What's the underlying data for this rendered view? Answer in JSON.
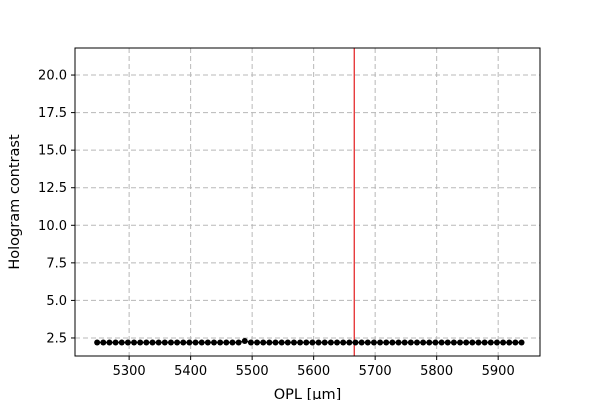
{
  "chart_data": {
    "type": "line",
    "title": "",
    "xlabel": "OPL [μm]",
    "ylabel": "Hologram contrast",
    "xlim": [
      5212,
      5968
    ],
    "ylim": [
      1.3,
      21.8
    ],
    "xticks": [
      5300,
      5400,
      5500,
      5600,
      5700,
      5800,
      5900
    ],
    "yticks": [
      2.5,
      5.0,
      7.5,
      10.0,
      12.5,
      15.0,
      17.5,
      20.0
    ],
    "xtick_labels": [
      "5300",
      "5400",
      "5500",
      "5600",
      "5700",
      "5800",
      "5900"
    ],
    "ytick_labels": [
      "2.5",
      "5.0",
      "7.5",
      "10.0",
      "12.5",
      "15.0",
      "17.5",
      "20.0"
    ],
    "grid": true,
    "grid_style": "dashed",
    "line_color": "#000000",
    "marker": "circle",
    "vertical_line": {
      "x": 5666,
      "color": "#e31a1c"
    },
    "series": [
      {
        "x": [
          5248,
          5258,
          5268,
          5278,
          5288,
          5298,
          5308,
          5318,
          5328,
          5338,
          5348,
          5358,
          5368,
          5378,
          5388,
          5398,
          5408,
          5418,
          5428,
          5438,
          5448,
          5458,
          5468,
          5478,
          5488,
          5498,
          5508,
          5518,
          5528,
          5538,
          5548,
          5558,
          5568,
          5578,
          5588,
          5598,
          5608,
          5618,
          5628,
          5638,
          5648,
          5658,
          5668,
          5678,
          5688,
          5698,
          5708,
          5718,
          5728,
          5738,
          5748,
          5758,
          5768,
          5778,
          5788,
          5798,
          5808,
          5818,
          5828,
          5838,
          5848,
          5858,
          5868,
          5878,
          5888,
          5898,
          5908,
          5918,
          5928,
          5938
        ],
        "y": [
          2.2,
          2.2,
          2.2,
          2.2,
          2.2,
          2.2,
          2.2,
          2.2,
          2.2,
          2.2,
          2.2,
          2.2,
          2.2,
          2.2,
          2.2,
          2.2,
          2.2,
          2.2,
          2.2,
          2.2,
          2.2,
          2.2,
          2.2,
          2.2,
          2.3,
          2.2,
          2.2,
          2.2,
          2.2,
          2.2,
          2.2,
          2.2,
          2.2,
          2.2,
          2.2,
          2.2,
          2.2,
          2.2,
          2.2,
          2.2,
          2.2,
          2.2,
          2.2,
          2.2,
          2.2,
          2.2,
          2.2,
          2.2,
          2.2,
          2.2,
          2.2,
          2.2,
          2.2,
          2.2,
          2.2,
          2.2,
          2.2,
          2.2,
          2.2,
          2.2,
          2.2,
          2.2,
          2.2,
          2.2,
          2.2,
          2.2,
          2.2,
          2.2,
          2.2,
          2.2
        ]
      }
    ]
  }
}
